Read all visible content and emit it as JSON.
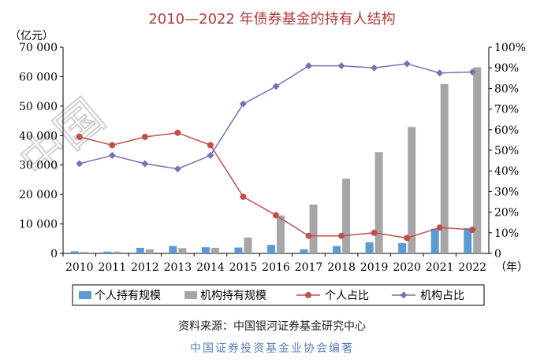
{
  "page": {
    "title": "2010—2022 年债券基金的持有人结构",
    "source": "资料来源：中国银河证券基金研究中心",
    "footer": "中国证券投资基金业协会编著",
    "watermark_text": "中国"
  },
  "colors": {
    "title": "#b03a3a",
    "individual_bar": "#5b9bd5",
    "institution_bar": "#a6a6a6",
    "individual_line": "#c0504d",
    "institution_line": "#7b6fb5",
    "footer": "#5a7fb4"
  },
  "chart_data": {
    "type": "bar",
    "left_unit": "（亿元）",
    "right_unit": "（年）",
    "categories": [
      "2010",
      "2011",
      "2012",
      "2013",
      "2014",
      "2015",
      "2016",
      "2017",
      "2018",
      "2019",
      "2020",
      "2021",
      "2022"
    ],
    "y_left": {
      "lim": [
        0,
        70000
      ],
      "ticks": [
        0,
        10000,
        20000,
        30000,
        40000,
        50000,
        60000,
        70000
      ],
      "tick_labels": [
        "0",
        "10 000",
        "20 000",
        "30 000",
        "40 000",
        "50 000",
        "60 000",
        "70 000"
      ]
    },
    "y_right": {
      "lim": [
        0,
        100
      ],
      "ticks": [
        0,
        10,
        20,
        30,
        40,
        50,
        60,
        70,
        80,
        90,
        100
      ],
      "tick_labels": [
        "0",
        "10%",
        "20%",
        "30%",
        "40%",
        "50%",
        "60%",
        "70%",
        "80%",
        "90%",
        "100%"
      ]
    },
    "series": [
      {
        "name": "个人持有规模",
        "type": "bar",
        "axis": "left",
        "values": [
          700,
          600,
          1900,
          2500,
          2100,
          2000,
          2900,
          1400,
          2500,
          3800,
          3500,
          8400,
          8600
        ]
      },
      {
        "name": "机构持有规模",
        "type": "bar",
        "axis": "left",
        "values": [
          500,
          600,
          1400,
          1800,
          1900,
          5400,
          12900,
          16600,
          25400,
          34400,
          42900,
          57500,
          63200
        ]
      },
      {
        "name": "个人占比",
        "type": "line",
        "axis": "right",
        "values": [
          56.5,
          52.5,
          56.5,
          58.5,
          52.5,
          27.5,
          18.5,
          8.5,
          8.5,
          10,
          7.5,
          12.5,
          11.5
        ]
      },
      {
        "name": "机构占比",
        "type": "line",
        "axis": "right",
        "values": [
          43.5,
          47.5,
          43.5,
          41,
          47.5,
          72.5,
          81,
          91,
          91,
          90,
          92,
          87.5,
          88
        ]
      }
    ],
    "legend_position": "bottom",
    "grid": false
  }
}
